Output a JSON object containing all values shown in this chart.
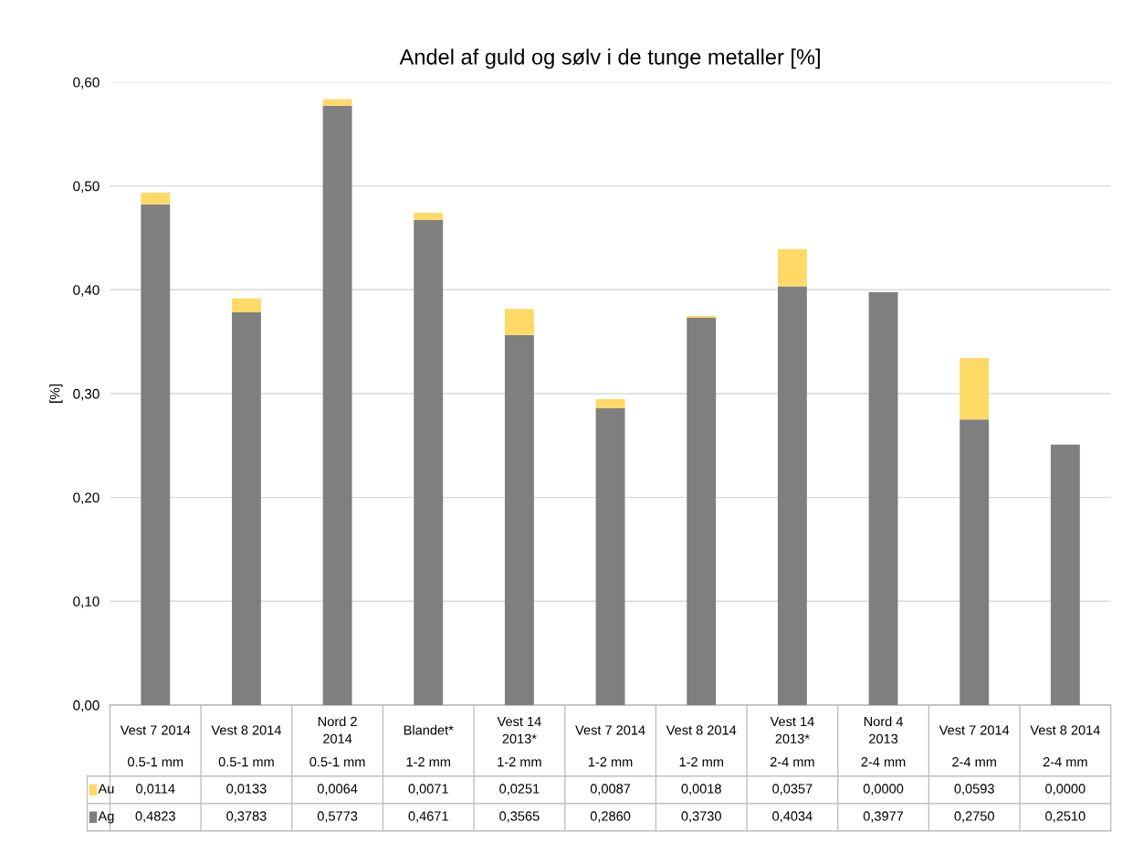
{
  "chart_data": {
    "type": "bar",
    "title": "Andel af guld og sølv i de tunge metaller [%]",
    "ylabel": "[%]",
    "stacked": true,
    "categories": [
      "Vest 7 2014\n0.5-1 mm",
      "Vest 8 2014\n0.5-1 mm",
      "Nord 2\n2014\n0.5-1 mm",
      "Blandet*\n1-2 mm",
      "Vest 14\n2013*\n1-2 mm",
      "Vest 7 2014\n1-2 mm",
      "Vest 8 2014\n1-2 mm",
      "Vest 14\n2013*\n2-4 mm",
      "Nord 4\n2013\n2-4 mm",
      "Vest 7 2014\n2-4 mm",
      "Vest 8 2014\n2-4 mm"
    ],
    "series": [
      {
        "name": "Ag",
        "color": "#7f7f7f",
        "values": [
          0.4823,
          0.3783,
          0.5773,
          0.4671,
          0.3565,
          0.286,
          0.373,
          0.4034,
          0.3977,
          0.275,
          0.251
        ],
        "value_labels": [
          "0,4823",
          "0,3783",
          "0,5773",
          "0,4671",
          "0,3565",
          "0,2860",
          "0,3730",
          "0,4034",
          "0,3977",
          "0,2750",
          "0,2510"
        ]
      },
      {
        "name": "Au",
        "color": "#ffd966",
        "values": [
          0.0114,
          0.0133,
          0.0064,
          0.0071,
          0.0251,
          0.0087,
          0.0018,
          0.0357,
          0.0,
          0.0593,
          0.0
        ],
        "value_labels": [
          "0,0114",
          "0,0133",
          "0,0064",
          "0,0071",
          "0,0251",
          "0,0087",
          "0,0018",
          "0,0357",
          "0,0000",
          "0,0593",
          "0,0000"
        ]
      }
    ],
    "ylim": [
      0,
      0.6
    ],
    "yticks": [
      {
        "value": 0,
        "label": "0,00"
      },
      {
        "value": 0.1,
        "label": "0,10"
      },
      {
        "value": 0.2,
        "label": "0,20"
      },
      {
        "value": 0.3,
        "label": "0,30"
      },
      {
        "value": 0.4,
        "label": "0,40"
      },
      {
        "value": 0.5,
        "label": "0,50"
      },
      {
        "value": 0.6,
        "label": "0,60"
      }
    ],
    "grid": "y",
    "legend": "bottom left"
  }
}
